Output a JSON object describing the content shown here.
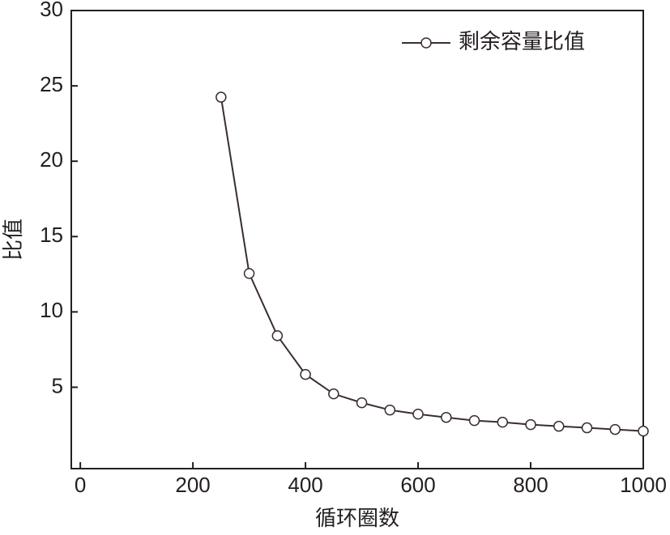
{
  "chart_data": {
    "type": "line",
    "x_label": "循环圈数",
    "y_label": "比值",
    "x": [
      250,
      300,
      350,
      400,
      450,
      500,
      550,
      600,
      650,
      700,
      750,
      800,
      850,
      900,
      950,
      1000
    ],
    "series": [
      {
        "name": "剩余容量比值",
        "color": "#3a2e2e",
        "values": [
          24.25,
          12.55,
          8.42,
          5.85,
          4.56,
          3.97,
          3.49,
          3.22,
          3.0,
          2.79,
          2.68,
          2.52,
          2.41,
          2.31,
          2.2,
          2.09
        ]
      }
    ],
    "xlim": [
      -16,
      1000
    ],
    "xticks": [
      0,
      200,
      400,
      600,
      800,
      1000
    ],
    "ylim": [
      -0.4,
      30
    ],
    "yticks": [
      5,
      10,
      15,
      20,
      25,
      30
    ],
    "legend": "upper right",
    "grid": false
  }
}
